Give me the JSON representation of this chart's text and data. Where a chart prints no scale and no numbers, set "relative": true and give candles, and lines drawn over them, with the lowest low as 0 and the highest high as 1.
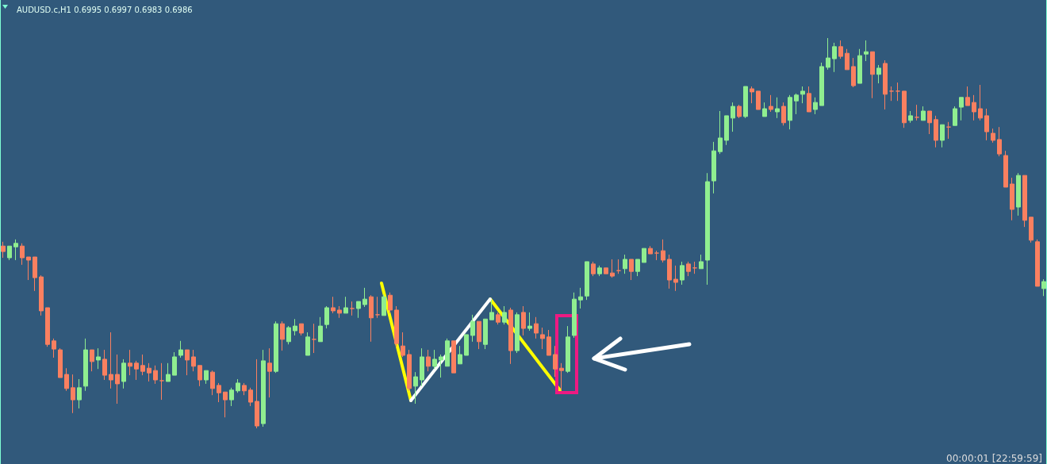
{
  "chart_data": {
    "type": "candlestick",
    "title": "AUDUSD.c,H1 0.6995 0.6997 0.6983 0.6986",
    "annotations": [
      "00:00:01 [22:59:59]"
    ],
    "relative": true,
    "colors": [
      "#fa8060",
      "#90ee90",
      "#90ee90",
      "#fa8060",
      "#fa8060",
      "#fa8060",
      "#fa8060",
      "#fa8060",
      "#fa8060",
      "#fa8060",
      "#fa8060",
      "#fa8060",
      "#90ee90",
      "#90ee90",
      "#fa8060",
      "#90ee90",
      "#fa8060",
      "#fa8060",
      "#fa8060",
      "#90ee90",
      "#fa8060",
      "#fa8060",
      "#fa8060",
      "#fa8060",
      "#fa8060",
      "#fa8060",
      "#90ee90",
      "#90ee90",
      "#90ee90",
      "#fa8060",
      "#fa8060",
      "#fa8060",
      "#90ee90",
      "#fa8060",
      "#fa8060",
      "#fa8060",
      "#90ee90",
      "#90ee90",
      "#fa8060",
      "#fa8060",
      "#fa8060",
      "#90ee90",
      "#fa8060",
      "#90ee90",
      "#fa8060",
      "#90ee90",
      "#90ee90",
      "#fa8060",
      "#90ee90",
      "#fa8060",
      "#90ee90",
      "#90ee90",
      "#fa8060",
      "#fa8060",
      "#90ee90",
      "#fa8060",
      "#90ee90",
      "#90ee90",
      "#fa8060",
      "#fa8060",
      "#90ee90",
      "#fa8060",
      "#fa8060",
      "#fa8060",
      "#fa8060",
      "#90ee90",
      "#90ee90",
      "#fa8060",
      "#90ee90",
      "#90ee90",
      "#90ee90",
      "#fa8060",
      "#90ee90",
      "#90ee90",
      "#90ee90",
      "#fa8060",
      "#90ee90",
      "#90ee90",
      "#fa8060",
      "#90ee90",
      "#fa8060",
      "#90ee90",
      "#fa8060",
      "#90ee90",
      "#fa8060",
      "#fa8060",
      "#fa8060",
      "#fa8060",
      "#fa8060",
      "#90ee90",
      "#90ee90",
      "#90ee90",
      "#90ee90",
      "#fa8060",
      "#90ee90",
      "#fa8060",
      "#fa8060",
      "#fa8060",
      "#90ee90",
      "#fa8060",
      "#90ee90",
      "#90ee90",
      "#fa8060",
      "#fa8060",
      "#fa8060",
      "#fa8060",
      "#fa8060",
      "#90ee90",
      "#fa8060",
      "#fa8060",
      "#90ee90",
      "#90ee90",
      "#90ee90",
      "#90ee90",
      "#90ee90",
      "#90ee90",
      "#fa8060",
      "#90ee90",
      "#fa8060",
      "#fa8060",
      "#90ee90",
      "#fa8060",
      "#90ee90",
      "#fa8060",
      "#90ee90",
      "#90ee90",
      "#90ee90",
      "#fa8060",
      "#90ee90",
      "#90ee90",
      "#90ee90",
      "#90ee90",
      "#fa8060",
      "#fa8060",
      "#fa8060",
      "#90ee90",
      "#90ee90",
      "#fa8060",
      "#90ee90",
      "#fa8060",
      "#fa8060",
      "#fa8060",
      "#fa8060",
      "#90ee90",
      "#fa8060",
      "#90ee90",
      "#fa8060",
      "#fa8060",
      "#90ee90",
      "#fa8060",
      "#90ee90",
      "#90ee90",
      "#fa8060",
      "#fa8060",
      "#fa8060",
      "#fa8060",
      "#fa8060",
      "#fa8060",
      "#fa8060",
      "#fa8060",
      "#90ee90",
      "#fa8060",
      "#fa8060",
      "#fa8060",
      "#90ee90"
    ],
    "categories": [
      null,
      null,
      null,
      null,
      null,
      null,
      null,
      null,
      null,
      null,
      null,
      null,
      null,
      null,
      null,
      null,
      null,
      null,
      null,
      null,
      null,
      null,
      null,
      null,
      null,
      null,
      null,
      null,
      null,
      null,
      null,
      null,
      null,
      null,
      null,
      null,
      null,
      null,
      null,
      null,
      null,
      null,
      null,
      null,
      null,
      null,
      null,
      null,
      null,
      null,
      null,
      null,
      null,
      null,
      null,
      null,
      null,
      null,
      null,
      null,
      null,
      null,
      null,
      null,
      null,
      null,
      null,
      null,
      null,
      null,
      null,
      null,
      null,
      null,
      null,
      null,
      null,
      null,
      null,
      null,
      null,
      null,
      null,
      null,
      null,
      null,
      null,
      null,
      null,
      null,
      null,
      null,
      null,
      null,
      null,
      null,
      null,
      null,
      null,
      null,
      null,
      null,
      null,
      null,
      null,
      null,
      null,
      null,
      null,
      null,
      null,
      null,
      null,
      null,
      null,
      null,
      null,
      null,
      null,
      null,
      null,
      null,
      null,
      null,
      null,
      null,
      null,
      null,
      null,
      null,
      null,
      null,
      null,
      null,
      null,
      null,
      null,
      null,
      null,
      null,
      null,
      null,
      null,
      null,
      null,
      null,
      null,
      null,
      null,
      null,
      null,
      null,
      null,
      null,
      null,
      null,
      null,
      null,
      null,
      null,
      null,
      null,
      null,
      null,
      null
    ],
    "ohlc": [
      [
        0.467,
        0.478,
        0.437,
        0.453
      ],
      [
        0.437,
        0.467,
        0.431,
        0.467
      ],
      [
        0.465,
        0.484,
        0.431,
        0.474
      ],
      [
        0.467,
        0.474,
        0.419,
        0.437
      ],
      [
        0.439,
        0.439,
        0.38,
        0.431
      ],
      [
        0.439,
        0.439,
        0.352,
        0.386
      ],
      [
        0.388,
        0.392,
        0.289,
        0.301
      ],
      [
        0.309,
        0.309,
        0.209,
        0.215
      ],
      [
        0.224,
        0.23,
        0.181,
        0.203
      ],
      [
        0.201,
        0.205,
        0.13,
        0.13
      ],
      [
        0.138,
        0.154,
        0.096,
        0.102
      ],
      [
        0.104,
        0.138,
        0.039,
        0.073
      ],
      [
        0.073,
        0.126,
        0.051,
        0.104
      ],
      [
        0.108,
        0.23,
        0.096,
        0.201
      ],
      [
        0.201,
        0.201,
        0.146,
        0.171
      ],
      [
        0.175,
        0.205,
        0.152,
        0.183
      ],
      [
        0.177,
        0.201,
        0.124,
        0.136
      ],
      [
        0.138,
        0.246,
        0.102,
        0.124
      ],
      [
        0.138,
        0.189,
        0.063,
        0.114
      ],
      [
        0.12,
        0.177,
        0.102,
        0.167
      ],
      [
        0.167,
        0.201,
        0.136,
        0.159
      ],
      [
        0.167,
        0.173,
        0.124,
        0.152
      ],
      [
        0.161,
        0.189,
        0.136,
        0.146
      ],
      [
        0.154,
        0.167,
        0.12,
        0.142
      ],
      [
        0.148,
        0.161,
        0.114,
        0.124
      ],
      [
        0.122,
        0.167,
        0.073,
        0.122
      ],
      [
        0.12,
        0.167,
        0.12,
        0.138
      ],
      [
        0.136,
        0.195,
        0.136,
        0.183
      ],
      [
        0.187,
        0.224,
        0.181,
        0.201
      ],
      [
        0.201,
        0.201,
        0.136,
        0.175
      ],
      [
        0.183,
        0.201,
        0.146,
        0.159
      ],
      [
        0.161,
        0.161,
        0.108,
        0.124
      ],
      [
        0.124,
        0.148,
        0.114,
        0.148
      ],
      [
        0.144,
        0.148,
        0.085,
        0.102
      ],
      [
        0.11,
        0.116,
        0.067,
        0.091
      ],
      [
        0.093,
        0.093,
        0.028,
        0.073
      ],
      [
        0.073,
        0.104,
        0.057,
        0.098
      ],
      [
        0.096,
        0.126,
        0.091,
        0.116
      ],
      [
        0.11,
        0.116,
        0.085,
        0.096
      ],
      [
        0.098,
        0.104,
        0.057,
        0.067
      ],
      [
        0.069,
        0.177,
        0,
        0.006
      ],
      [
        0.012,
        0.201,
        0.004,
        0.173
      ],
      [
        0.167,
        0.205,
        0.079,
        0.146
      ],
      [
        0.146,
        0.274,
        0.142,
        0.268
      ],
      [
        0.268,
        0.274,
        0.199,
        0.228
      ],
      [
        0.222,
        0.262,
        0.215,
        0.258
      ],
      [
        0.25,
        0.28,
        0.238,
        0.262
      ],
      [
        0.268,
        0.268,
        0.238,
        0.244
      ],
      [
        0.187,
        0.246,
        0.187,
        0.234
      ],
      [
        0.228,
        0.268,
        0.193,
        0.228
      ],
      [
        0.222,
        0.285,
        0.222,
        0.262
      ],
      [
        0.266,
        0.313,
        0.256,
        0.309
      ],
      [
        0.309,
        0.337,
        0.295,
        0.301
      ],
      [
        0.303,
        0.313,
        0.283,
        0.295
      ],
      [
        0.295,
        0.337,
        0.295,
        0.309
      ],
      [
        0.307,
        0.325,
        0.289,
        0.307
      ],
      [
        0.307,
        0.325,
        0.283,
        0.325
      ],
      [
        0.317,
        0.36,
        0.311,
        0.331
      ],
      [
        0.337,
        0.341,
        0.222,
        0.283
      ],
      [
        0.291,
        0.337,
        0.283,
        0.291
      ],
      [
        0.289,
        0.343,
        0.289,
        0.337
      ],
      [
        0.341,
        0.348,
        0.295,
        0.303
      ],
      [
        0.303,
        0.313,
        0.209,
        0.217
      ],
      [
        0.211,
        0.246,
        0.183,
        0.187
      ],
      [
        0.189,
        0.201,
        0.096,
        0.102
      ],
      [
        0.108,
        0.144,
        0.063,
        0.132
      ],
      [
        0.124,
        0.205,
        0.108,
        0.183
      ],
      [
        0.183,
        0.201,
        0.146,
        0.159
      ],
      [
        0.159,
        0.201,
        0.152,
        0.177
      ],
      [
        0.175,
        0.189,
        0.13,
        0.183
      ],
      [
        0.159,
        0.23,
        0.159,
        0.224
      ],
      [
        0.224,
        0.224,
        0.142,
        0.142
      ],
      [
        0.165,
        0.211,
        0.165,
        0.189
      ],
      [
        0.187,
        0.24,
        0.187,
        0.24
      ],
      [
        0.238,
        0.291,
        0.222,
        0.274
      ],
      [
        0.274,
        0.274,
        0.203,
        0.222
      ],
      [
        0.215,
        0.28,
        0.203,
        0.28
      ],
      [
        0.278,
        0.329,
        0.278,
        0.297
      ],
      [
        0.291,
        0.297,
        0.266,
        0.272
      ],
      [
        0.272,
        0.313,
        0.266,
        0.297
      ],
      [
        0.303,
        0.309,
        0.165,
        0.199
      ],
      [
        0.199,
        0.297,
        0.193,
        0.291
      ],
      [
        0.297,
        0.313,
        0.238,
        0.256
      ],
      [
        0.256,
        0.297,
        0.25,
        0.262
      ],
      [
        0.268,
        0.285,
        0.23,
        0.244
      ],
      [
        0.24,
        0.258,
        0.203,
        0.23
      ],
      [
        0.234,
        0.252,
        0.187,
        0.187
      ],
      [
        0.189,
        0.211,
        0.132,
        0.152
      ],
      [
        0.154,
        0.167,
        0.098,
        0.148
      ],
      [
        0.146,
        0.262,
        0.142,
        0.234
      ],
      [
        0.238,
        0.348,
        0.232,
        0.331
      ],
      [
        0.329,
        0.36,
        0.307,
        0.337
      ],
      [
        0.339,
        0.427,
        0.329,
        0.427
      ],
      [
        0.421,
        0.427,
        0.39,
        0.396
      ],
      [
        0.396,
        0.417,
        0.39,
        0.411
      ],
      [
        0.411,
        0.411,
        0.396,
        0.396
      ],
      [
        0.398,
        0.433,
        0.386,
        0.39
      ],
      [
        0.404,
        0.433,
        0.396,
        0.404
      ],
      [
        0.409,
        0.445,
        0.396,
        0.433
      ],
      [
        0.433,
        0.433,
        0.38,
        0.402
      ],
      [
        0.402,
        0.433,
        0.39,
        0.433
      ],
      [
        0.425,
        0.461,
        0.425,
        0.461
      ],
      [
        0.461,
        0.467,
        0.447,
        0.447
      ],
      [
        0.449,
        0.455,
        0.431,
        0.449
      ],
      [
        0.455,
        0.484,
        0.425,
        0.431
      ],
      [
        0.433,
        0.445,
        0.358,
        0.38
      ],
      [
        0.382,
        0.417,
        0.352,
        0.374
      ],
      [
        0.38,
        0.427,
        0.368,
        0.417
      ],
      [
        0.421,
        0.427,
        0.39,
        0.402
      ],
      [
        0.411,
        0.427,
        0.396,
        0.411
      ],
      [
        0.409,
        0.445,
        0.409,
        0.427
      ],
      [
        0.431,
        0.654,
        0.368,
        0.632
      ],
      [
        0.634,
        0.734,
        0.602,
        0.711
      ],
      [
        0.709,
        0.813,
        0.703,
        0.744
      ],
      [
        0.738,
        0.801,
        0.726,
        0.801
      ],
      [
        0.795,
        0.835,
        0.76,
        0.825
      ],
      [
        0.825,
        0.829,
        0.795,
        0.799
      ],
      [
        0.799,
        0.876,
        0.795,
        0.876
      ],
      [
        0.87,
        0.876,
        0.833,
        0.862
      ],
      [
        0.864,
        0.864,
        0.817,
        0.817
      ],
      [
        0.799,
        0.835,
        0.799,
        0.819
      ],
      [
        0.825,
        0.854,
        0.811,
        0.817
      ],
      [
        0.811,
        0.848,
        0.795,
        0.819
      ],
      [
        0.825,
        0.835,
        0.776,
        0.783
      ],
      [
        0.789,
        0.854,
        0.766,
        0.848
      ],
      [
        0.839,
        0.858,
        0.805,
        0.854
      ],
      [
        0.856,
        0.876,
        0.833,
        0.864
      ],
      [
        0.858,
        0.876,
        0.811,
        0.811
      ],
      [
        0.817,
        0.848,
        0.805,
        0.835
      ],
      [
        0.827,
        0.937,
        0.827,
        0.927
      ],
      [
        0.925,
        1,
        0.919,
        0.949
      ],
      [
        0.947,
        0.988,
        0.913,
        0.978
      ],
      [
        0.978,
        0.994,
        0.947,
        0.953
      ],
      [
        0.961,
        0.972,
        0.919,
        0.919
      ],
      [
        0.927,
        0.949,
        0.874,
        0.878
      ],
      [
        0.884,
        0.972,
        0.884,
        0.955
      ],
      [
        0.959,
        0.994,
        0.941,
        0.965
      ],
      [
        0.965,
        0.965,
        0.846,
        0.907
      ],
      [
        0.907,
        0.931,
        0.884,
        0.923
      ],
      [
        0.935,
        0.943,
        0.817,
        0.856
      ],
      [
        0.864,
        0.876,
        0.839,
        0.864
      ],
      [
        0.864,
        0.886,
        0.839,
        0.864
      ],
      [
        0.864,
        0.864,
        0.77,
        0.783
      ],
      [
        0.789,
        0.813,
        0.783,
        0.801
      ],
      [
        0.797,
        0.829,
        0.789,
        0.797
      ],
      [
        0.789,
        0.825,
        0.789,
        0.813
      ],
      [
        0.813,
        0.813,
        0.754,
        0.783
      ],
      [
        0.791,
        0.801,
        0.72,
        0.738
      ],
      [
        0.738,
        0.778,
        0.72,
        0.778
      ],
      [
        0.772,
        0.785,
        0.742,
        0.772
      ],
      [
        0.776,
        0.825,
        0.776,
        0.819
      ],
      [
        0.823,
        0.848,
        0.789,
        0.848
      ],
      [
        0.848,
        0.876,
        0.827,
        0.827
      ],
      [
        0.835,
        0.854,
        0.789,
        0.811
      ],
      [
        0.819,
        0.88,
        0.789,
        0.795
      ],
      [
        0.801,
        0.819,
        0.738,
        0.76
      ],
      [
        0.756,
        0.768,
        0.732,
        0.738
      ],
      [
        0.74,
        0.772,
        0.697,
        0.703
      ],
      [
        0.699,
        0.711,
        0.618,
        0.618
      ],
      [
        0.626,
        0.642,
        0.533,
        0.561
      ],
      [
        0.567,
        0.654,
        0.545,
        0.648
      ],
      [
        0.648,
        0.648,
        0.516,
        0.533
      ],
      [
        0.541,
        0.541,
        0.476,
        0.482
      ],
      [
        0.478,
        0.484,
        0.364,
        0.364
      ],
      [
        0.358,
        0.382,
        0.339,
        0.376
      ]
    ]
  }
}
